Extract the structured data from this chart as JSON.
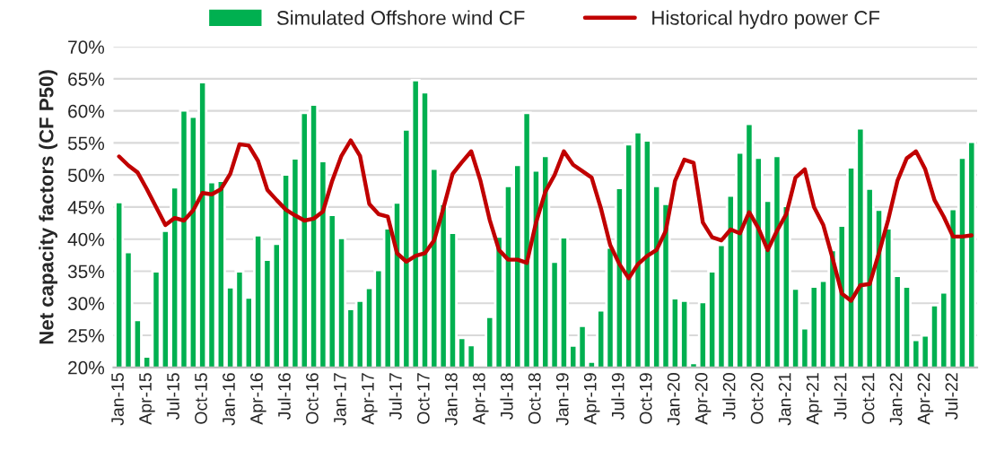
{
  "chart_data": {
    "type": "bar",
    "ylabel": "Net capacity factors (CF P50)",
    "categories": [
      "Jan-15",
      null,
      null,
      "Apr-15",
      null,
      null,
      "Jul-15",
      null,
      null,
      "Oct-15",
      null,
      null,
      "Jan-16",
      null,
      null,
      "Apr-16",
      null,
      null,
      "Jul-16",
      null,
      null,
      "Oct-16",
      null,
      null,
      "Jan-17",
      null,
      null,
      "Apr-17",
      null,
      null,
      "Jul-17",
      null,
      null,
      "Oct-17",
      null,
      null,
      "Jan-18",
      null,
      null,
      "Apr-18",
      null,
      null,
      "Jul-18",
      null,
      null,
      "Oct-18",
      null,
      null,
      "Jan-19",
      null,
      null,
      "Apr-19",
      null,
      null,
      "Jul-19",
      null,
      null,
      "Oct-19",
      null,
      null,
      "Jan-20",
      null,
      null,
      "Apr-20",
      null,
      null,
      "Jul-20",
      null,
      null,
      "Oct-20",
      null,
      null,
      "Jan-21",
      null,
      null,
      "Apr-21",
      null,
      null,
      "Jul-21",
      null,
      null,
      "Oct-21",
      null,
      null,
      "Jan-22",
      null,
      null,
      "Apr-22",
      null,
      null,
      "Jul-22",
      null,
      null
    ],
    "series": [
      {
        "name": "Simulated Offshore wind CF",
        "color": "#00b050",
        "values": [
          45.8,
          38,
          27.4,
          21.7,
          35,
          41.3,
          48.1,
          60.1,
          59.1,
          64.5,
          48.9,
          49.1,
          32.5,
          35,
          30.9,
          40.6,
          36.8,
          39.3,
          50.1,
          52.6,
          59.7,
          61,
          52.2,
          43.8,
          40.2,
          29.1,
          30.4,
          32.4,
          35.2,
          41.7,
          45.7,
          57.1,
          64.8,
          62.9,
          51,
          45.5,
          41,
          24.6,
          23.5,
          20,
          27.9,
          40.4,
          48.3,
          51.6,
          59.7,
          50.7,
          53,
          36.5,
          40.3,
          23.4,
          26.5,
          20.9,
          28.9,
          38.7,
          48,
          54.8,
          56.7,
          55.4,
          48.3,
          45.5,
          30.8,
          30.4,
          20.7,
          30.2,
          35,
          39.1,
          46.8,
          53.5,
          58,
          52.7,
          46,
          53,
          45.2,
          32.3,
          26.1,
          32.6,
          33.5,
          38.3,
          42.1,
          51.2,
          57.3,
          47.9,
          44.6,
          41.7,
          34.3,
          32.6,
          24.3,
          25,
          29.7,
          31.7,
          44.7,
          52.7,
          55.2
        ]
      },
      {
        "name": "Historical hydro power CF",
        "type": "line",
        "color": "#c00000",
        "values": [
          52.9,
          51.5,
          50.4,
          47.8,
          45,
          42.2,
          43.3,
          42.9,
          44.5,
          47.2,
          47,
          47.8,
          50.2,
          54.8,
          54.6,
          52.2,
          47.7,
          46.1,
          44.6,
          43.7,
          42.9,
          43.2,
          44.3,
          49.1,
          53,
          55.4,
          53,
          45.5,
          43.9,
          43.5,
          37.8,
          36.5,
          37.4,
          37.8,
          39.8,
          44.8,
          50.2,
          52,
          53.7,
          49.1,
          43,
          38.3,
          36.8,
          36.8,
          36.3,
          42.6,
          47.4,
          50,
          53.7,
          51.6,
          50.6,
          49.6,
          44.8,
          39.1,
          36.1,
          33.9,
          36.1,
          37.4,
          38.3,
          41.3,
          49.1,
          52.4,
          51.9,
          42.6,
          40.3,
          39.8,
          41.5,
          40.9,
          44.2,
          41.7,
          38.3,
          41.3,
          43.9,
          49.6,
          50.9,
          45,
          42.2,
          37,
          31.5,
          30.4,
          32.8,
          33,
          37.8,
          43,
          49.1,
          52.6,
          53.7,
          50.9,
          46.1,
          43.5,
          40.4,
          40.4,
          40.6
        ]
      }
    ],
    "ylim": [
      20,
      70
    ],
    "yticks": [
      {
        "value": 20,
        "label": "20%"
      },
      {
        "value": 25,
        "label": "25%"
      },
      {
        "value": 30,
        "label": "30%"
      },
      {
        "value": 35,
        "label": "35%"
      },
      {
        "value": 40,
        "label": "40%"
      },
      {
        "value": 45,
        "label": "45%"
      },
      {
        "value": 50,
        "label": "50%"
      },
      {
        "value": 55,
        "label": "55%"
      },
      {
        "value": 60,
        "label": "60%"
      },
      {
        "value": 65,
        "label": "65%"
      },
      {
        "value": 70,
        "label": "70%"
      }
    ],
    "grid": "y",
    "legend": "top"
  }
}
